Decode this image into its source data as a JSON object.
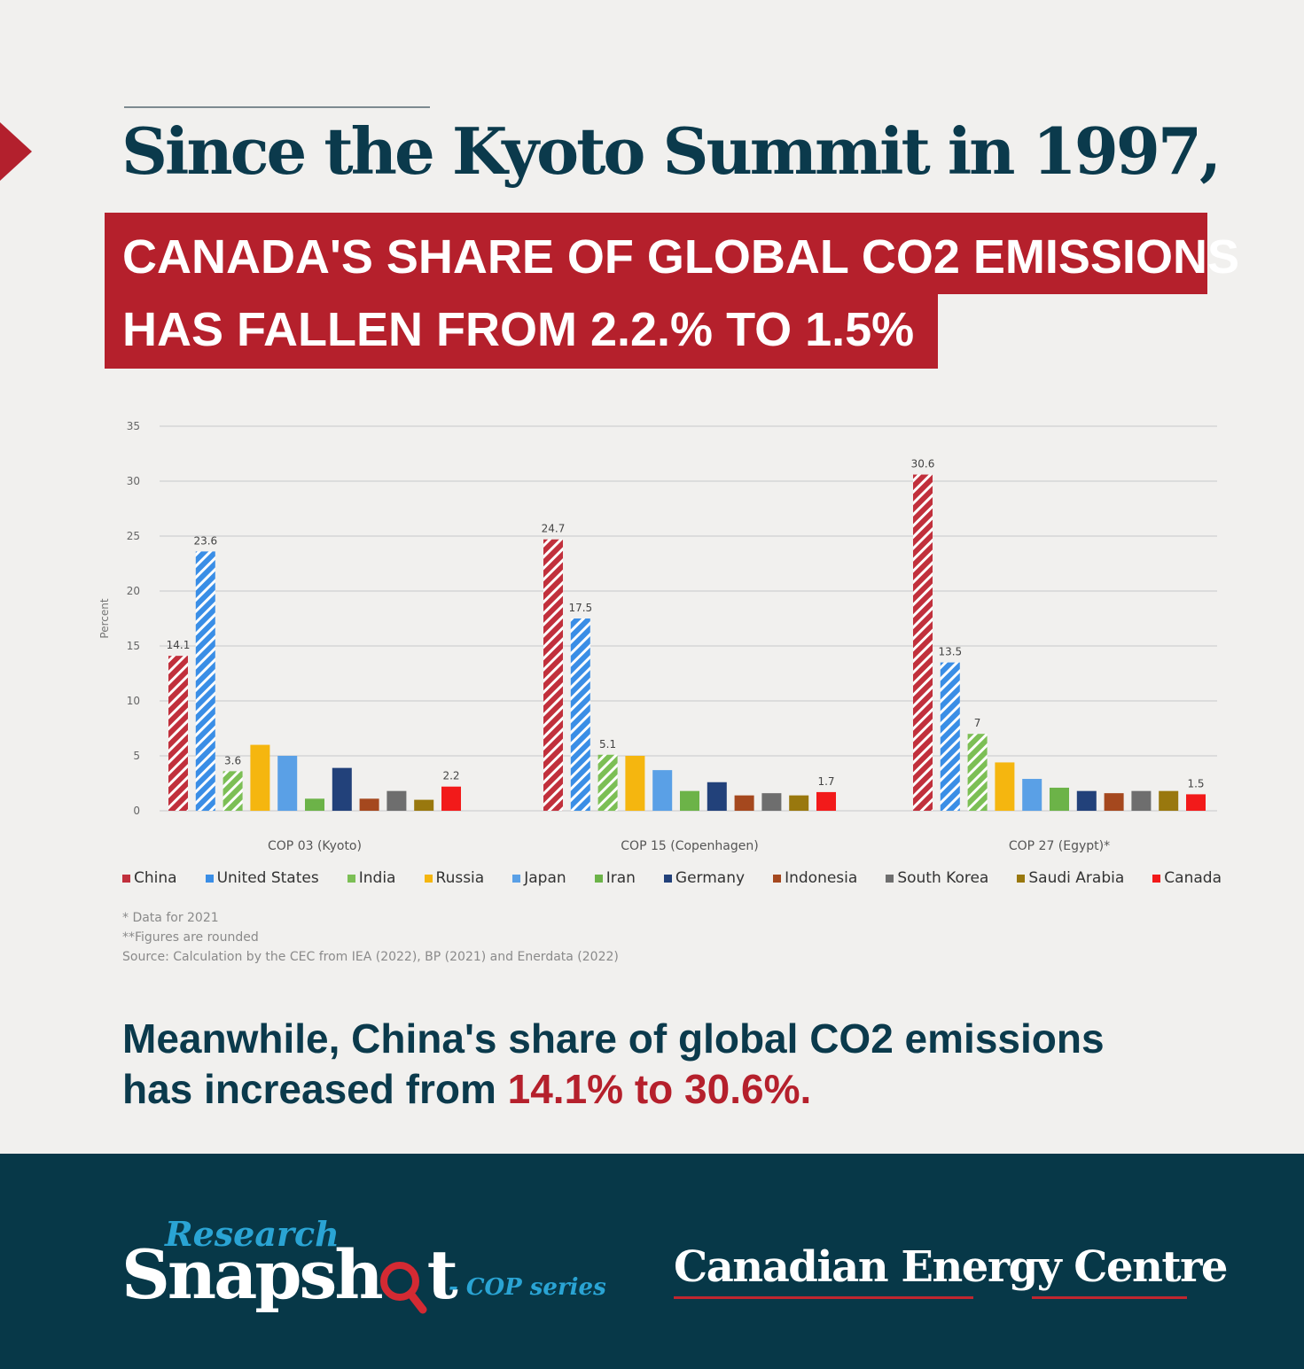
{
  "header": {
    "headline": "Since the Kyoto Summit in 1997,",
    "band_line1": "CANADA'S SHARE OF GLOBAL CO2 EMISSIONS",
    "band_line2": "HAS FALLEN FROM 2.2.% TO 1.5%"
  },
  "chart_data": {
    "type": "bar",
    "ylabel": "Percent",
    "ylim": [
      0,
      35
    ],
    "yticks": [
      "0",
      "5",
      "10",
      "15",
      "20",
      "25",
      "30",
      "35"
    ],
    "grid": true,
    "legend_position": "bottom",
    "categories": [
      "COP 03 (Kyoto)",
      "COP 15 (Copenhagen)",
      "COP 27 (Egypt)*"
    ],
    "series": [
      {
        "name": "China",
        "color": "#c1303c",
        "pattern": "hatch",
        "values": [
          14.1,
          24.7,
          30.6
        ],
        "labels": [
          "14.1",
          "24.7",
          "30.6"
        ]
      },
      {
        "name": "United States",
        "color": "#3a8ee6",
        "pattern": "hatch",
        "values": [
          23.6,
          17.5,
          13.5
        ],
        "labels": [
          "23.6",
          "17.5",
          "13.5"
        ]
      },
      {
        "name": "India",
        "color": "#7cbf55",
        "pattern": "hatch",
        "values": [
          3.6,
          5.1,
          7.0
        ],
        "labels": [
          "3.6",
          "5.1",
          "7"
        ]
      },
      {
        "name": "Russia",
        "color": "#f5b60f",
        "pattern": "solid",
        "values": [
          6.0,
          5.0,
          4.4
        ],
        "labels": [
          "",
          "",
          ""
        ]
      },
      {
        "name": "Japan",
        "color": "#5aa0e6",
        "pattern": "solid",
        "values": [
          5.0,
          3.7,
          2.9
        ],
        "labels": [
          "",
          "",
          ""
        ]
      },
      {
        "name": "Iran",
        "color": "#6cb348",
        "pattern": "solid",
        "values": [
          1.1,
          1.8,
          2.1
        ],
        "labels": [
          "",
          "",
          ""
        ]
      },
      {
        "name": "Germany",
        "color": "#22417a",
        "pattern": "solid",
        "values": [
          3.9,
          2.6,
          1.8
        ],
        "labels": [
          "",
          "",
          ""
        ]
      },
      {
        "name": "Indonesia",
        "color": "#a5481e",
        "pattern": "solid",
        "values": [
          1.1,
          1.4,
          1.6
        ],
        "labels": [
          "",
          "",
          ""
        ]
      },
      {
        "name": "South Korea",
        "color": "#6e6e6e",
        "pattern": "solid",
        "values": [
          1.8,
          1.6,
          1.8
        ],
        "labels": [
          "",
          "",
          ""
        ]
      },
      {
        "name": "Saudi Arabia",
        "color": "#99780e",
        "pattern": "solid",
        "values": [
          1.0,
          1.4,
          1.8
        ],
        "labels": [
          "",
          "",
          ""
        ]
      },
      {
        "name": "Canada",
        "color": "#f21a1a",
        "pattern": "solid",
        "values": [
          2.2,
          1.7,
          1.5
        ],
        "labels": [
          "2.2",
          "1.7",
          "1.5"
        ]
      }
    ]
  },
  "notes": [
    "* Data for 2021",
    "**Figures are rounded",
    "Source: Calculation by the CEC from IEA (2022), BP (2021) and Enerdata (2022)"
  ],
  "bottom": {
    "line1": "Meanwhile, China's share of global CO2 emissions",
    "line2_prefix": "has increased from ",
    "line2_highlight": "14.1% to 30.6%."
  },
  "footer": {
    "logo_research": "Research",
    "logo_snapshot": "Snapsh",
    "logo_snapshot_end": "t",
    "logo_series": "- COP series",
    "org_name": "Canadian Energy Centre",
    "colors": {
      "background": "#073848",
      "accent_blue": "#2aa4d4",
      "accent_red": "#c0262f"
    }
  }
}
